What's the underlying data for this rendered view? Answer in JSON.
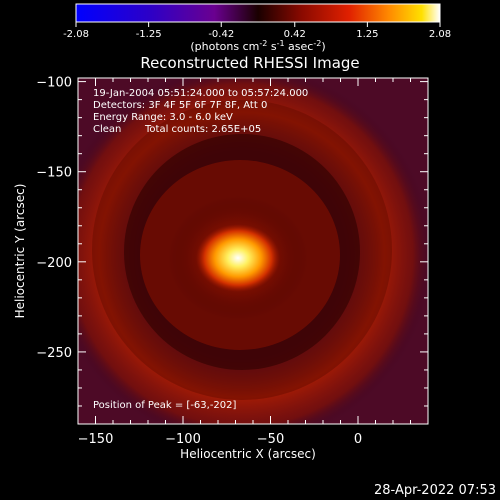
{
  "colorbar": {
    "tick_labels": [
      "-2.08",
      "-1.25",
      "-0.42",
      "0.42",
      "1.25",
      "2.08"
    ],
    "ticks": [
      -2.08,
      -1.25,
      -0.42,
      0.42,
      1.25,
      2.08
    ],
    "range": [
      -2.08,
      2.08
    ],
    "unit_base": "(photons cm",
    "unit_exp1": "-2",
    "unit_mid": " s",
    "unit_exp2": "-1",
    "unit_mid2": " asec",
    "unit_exp3": "-2",
    "unit_end": ")"
  },
  "chart_data": {
    "type": "heatmap",
    "title": "Reconstructed RHESSI Image",
    "xlabel": "Heliocentric X (arcsec)",
    "ylabel": "Heliocentric Y (arcsec)",
    "xlim": [
      -160,
      40
    ],
    "ylim": [
      -290,
      -98
    ],
    "x_ticks": [
      -150,
      -100,
      -50,
      0
    ],
    "x_tick_labels": [
      "−150",
      "−100",
      "−50",
      "0"
    ],
    "y_ticks": [
      -100,
      -150,
      -200,
      -250
    ],
    "y_tick_labels": [
      "−100",
      "−150",
      "−200",
      "−250"
    ],
    "annotations": [
      "19-Jan-2004 05:51:24.000 to 05:57:24.000",
      "Detectors: 3F 4F 5F 6F 7F 8F, Att 0",
      "Energy Range: 3.0 - 6.0 keV",
      "Clean",
      "Total counts: 2.65E+05"
    ],
    "peak_label": "Position of Peak = [-63,-202]",
    "peak": [
      -63,
      -202
    ],
    "colormap": "hot (blue-purple-red-yellow-white)"
  },
  "timestamp": "28-Apr-2022 07:53"
}
